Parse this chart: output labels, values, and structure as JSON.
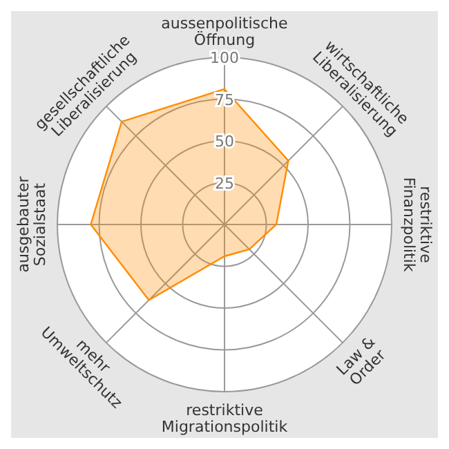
{
  "chart_data": {
    "type": "radar",
    "categories": [
      "aussenpolitische Öffnung",
      "wirtschaftliche Liberalisierung",
      "restriktive Finanzpolitik",
      "Law & Order",
      "restriktive Migrationspolitik",
      "mehr Umweltschutz",
      "ausgebauter Sozialstaat",
      "gesellschaftliche Liberalisierung"
    ],
    "series": [
      {
        "color": "#ff8c00",
        "values": [
          81,
          54,
          31,
          21,
          19,
          64,
          80,
          87
        ]
      }
    ],
    "ylim": [
      0,
      100
    ],
    "yticks": [
      25,
      50,
      75,
      100
    ],
    "grid": true,
    "legend": false
  }
}
